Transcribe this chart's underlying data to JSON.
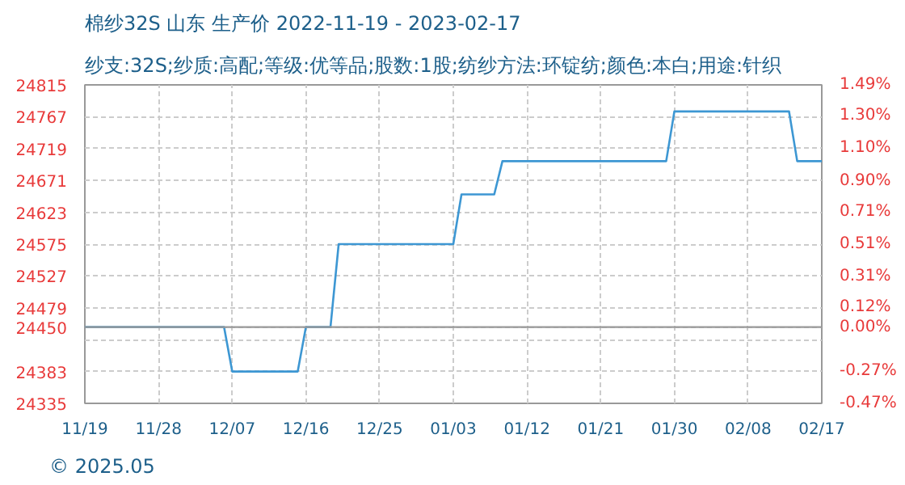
{
  "chart_data": {
    "type": "step",
    "title": "棉纱32S 山东 生产价 2022-11-19 - 2023-02-17",
    "subtitle": "纱支:32S;纱质:高配;等级:优等品;股数:1股;纺纱方法:环锭纺;颜色:本白;用途:针织",
    "x": [
      "2022-11-19",
      "2022-12-06",
      "2022-12-07",
      "2022-12-15",
      "2022-12-16",
      "2022-12-19",
      "2022-12-20",
      "2023-01-03",
      "2023-01-04",
      "2023-01-08",
      "2023-01-09",
      "2023-01-29",
      "2023-01-30",
      "2023-02-13",
      "2023-02-14",
      "2023-02-17"
    ],
    "series": [
      {
        "color": "#3d97d3",
        "values": [
          24450,
          24450,
          24383,
          24383,
          24450,
          24450,
          24575,
          24575,
          24650,
          24650,
          24700,
          24700,
          24775,
          24775,
          24700,
          24700
        ]
      }
    ],
    "xlim": [
      "2022-11-19",
      "2023-02-17"
    ],
    "xticks": [
      {
        "value": "2022-11-19",
        "label": "11/19"
      },
      {
        "value": "2022-11-28",
        "label": "11/28"
      },
      {
        "value": "2022-12-07",
        "label": "12/07"
      },
      {
        "value": "2022-12-16",
        "label": "12/16"
      },
      {
        "value": "2022-12-25",
        "label": "12/25"
      },
      {
        "value": "2023-01-03",
        "label": "01/03"
      },
      {
        "value": "2023-01-12",
        "label": "01/12"
      },
      {
        "value": "2023-01-21",
        "label": "01/21"
      },
      {
        "value": "2023-01-30",
        "label": "01/30"
      },
      {
        "value": "2023-02-08",
        "label": "02/08"
      },
      {
        "value": "2023-02-17",
        "label": "02/17"
      }
    ],
    "ylim": [
      24335,
      24815
    ],
    "yticks": [
      24335,
      24383,
      {
        "value": 24431,
        "label": null
      },
      24450,
      24479,
      24527,
      24575,
      24623,
      24671,
      24719,
      24767,
      24815
    ],
    "y2lim": [
      -0.47,
      1.49
    ],
    "y2ticks": [
      {
        "value": -0.47,
        "label": "-0.47%"
      },
      {
        "value": -0.27,
        "label": "-0.27%"
      },
      {
        "value": 0,
        "label": "0.00%"
      },
      {
        "value": 0.12,
        "label": "0.12%"
      },
      {
        "value": 0.31,
        "label": "0.31%"
      },
      {
        "value": 0.51,
        "label": "0.51%"
      },
      {
        "value": 0.71,
        "label": "0.71%"
      },
      {
        "value": 0.9,
        "label": "0.90%"
      },
      {
        "value": 1.1,
        "label": "1.10%"
      },
      {
        "value": 1.3,
        "label": "1.30%"
      },
      {
        "value": 1.49,
        "label": "1.49%"
      }
    ],
    "ref_lines": [
      {
        "axis": "y",
        "value": 24450,
        "color": "#999999",
        "line_style": "solid"
      }
    ],
    "annotations": [
      "© 2025.05"
    ],
    "grid": true,
    "line_style": "solid",
    "marker": "none"
  }
}
